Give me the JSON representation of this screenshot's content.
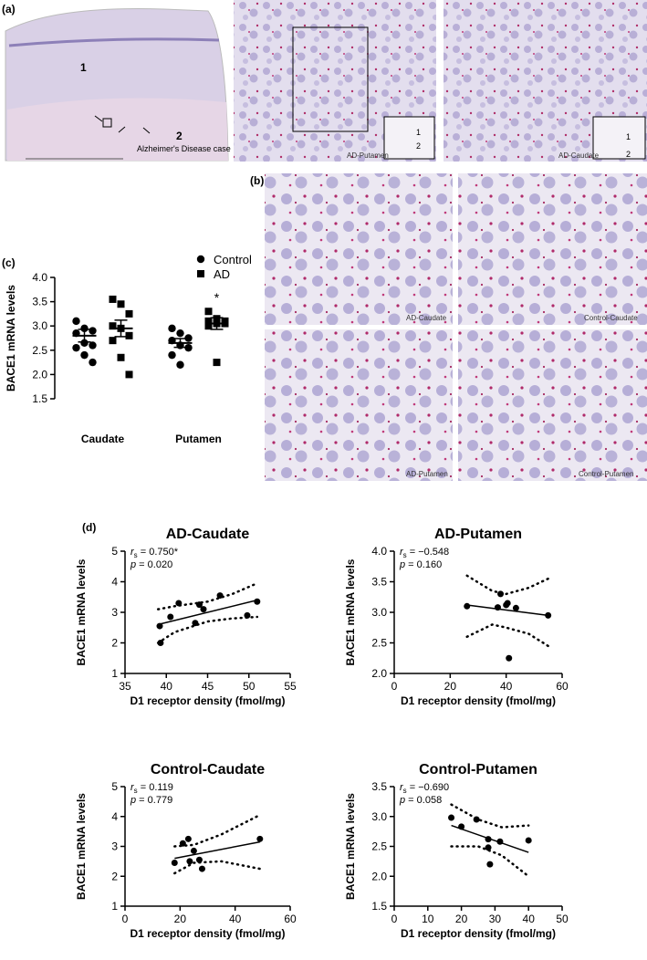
{
  "panel_labels": {
    "a": "(a)",
    "b": "(b)",
    "c": "(c)",
    "d": "(d)"
  },
  "images": {
    "a": [
      {
        "regions": [
          "1",
          "2"
        ],
        "caption": "Alzheimer's Disease case"
      },
      {
        "caption": "AD-Putamen",
        "inset": [
          "1",
          "2"
        ]
      },
      {
        "caption": "AD-Caudate",
        "inset": [
          "1",
          "2"
        ]
      }
    ],
    "b": [
      {
        "caption": "AD-Caudate"
      },
      {
        "caption": "Control-Caudate"
      },
      {
        "caption": "AD-Putamen"
      },
      {
        "caption": "Control-Putamen"
      }
    ]
  },
  "chart_data": [
    {
      "type": "dot",
      "y_label": "BACE1 mRNA levels",
      "categories": [
        "Caudate",
        "Putamen"
      ],
      "ylim": [
        1.5,
        4.0
      ],
      "yticks": [
        1.5,
        {
          "value": 2,
          "label": "2.0"
        },
        2.5,
        {
          "value": 3,
          "label": "3.0"
        },
        3.5,
        {
          "value": 4,
          "label": "4.0"
        }
      ],
      "series": [
        {
          "name": "Control",
          "marker": "circle",
          "color": "#000000",
          "values": [
            [
              3.1,
              2.95,
              2.9,
              2.85,
              2.65,
              2.6,
              2.55,
              2.4,
              2.25
            ],
            [
              2.95,
              2.85,
              2.75,
              2.7,
              2.6,
              2.55,
              2.4,
              2.2
            ]
          ],
          "means": [
            2.8,
            2.65
          ],
          "sems": [
            0.13,
            0.09
          ]
        },
        {
          "name": "AD",
          "marker": "square",
          "color": "#000000",
          "values": [
            [
              3.55,
              3.45,
              3.25,
              3.0,
              2.95,
              2.8,
              2.7,
              2.35,
              2.0
            ],
            [
              3.3,
              3.15,
              3.1,
              3.1,
              3.05,
              3.05,
              3.0,
              2.25
            ]
          ],
          "means": [
            2.95,
            3.05
          ],
          "sems": [
            0.17,
            0.12
          ]
        }
      ],
      "annotation": "*"
    },
    {
      "type": "scatter",
      "title": "AD-Caudate",
      "x_label": "D1  receptor density (fmol/mg)",
      "y_label": "BACE1 mRNA levels",
      "stats": [
        {
          "symbol": "r",
          "sub": "s",
          "text": " = 0.750*"
        },
        {
          "symbol": "p",
          "text": " = 0.020"
        }
      ],
      "xlim": [
        35,
        55
      ],
      "xticks": [
        35,
        40,
        45,
        50,
        55
      ],
      "ylim": [
        1,
        5
      ],
      "yticks": [
        1,
        2,
        3,
        4,
        5
      ],
      "x": [
        39.2,
        39.3,
        40.5,
        41.5,
        43.5,
        44,
        44.5,
        46.5,
        49.8,
        51
      ],
      "y": [
        2.55,
        2.0,
        2.85,
        3.3,
        2.65,
        3.25,
        3.1,
        3.55,
        2.9,
        3.35
      ],
      "fit": {
        "x": [
          39,
          51
        ],
        "y": [
          2.6,
          3.4
        ]
      },
      "ci_upper": {
        "x": [
          39,
          41,
          45,
          48,
          51
        ],
        "y": [
          3.1,
          3.2,
          3.35,
          3.6,
          3.95
        ]
      },
      "ci_lower": {
        "x": [
          39,
          41,
          45,
          48,
          51
        ],
        "y": [
          2.0,
          2.35,
          2.7,
          2.8,
          2.85
        ]
      }
    },
    {
      "type": "scatter",
      "title": "AD-Putamen",
      "x_label": "D1  receptor density (fmol/mg)",
      "y_label": "BACE1 mRNA levels",
      "stats": [
        {
          "symbol": "r",
          "sub": "s",
          "text": " = −0.548"
        },
        {
          "symbol": "p",
          "text": " = 0.160"
        }
      ],
      "xlim": [
        0,
        60
      ],
      "xticks": [
        0,
        20,
        40,
        60
      ],
      "ylim": [
        2,
        4
      ],
      "yticks": [
        {
          "value": 2,
          "label": "2.0"
        },
        2.5,
        {
          "value": 3,
          "label": "3.0"
        },
        3.5,
        {
          "value": 4,
          "label": "4.0"
        }
      ],
      "x": [
        26,
        37,
        38,
        40,
        40.5,
        41,
        43.5,
        55
      ],
      "y": [
        3.1,
        3.08,
        3.3,
        3.12,
        3.15,
        2.25,
        3.07,
        2.95
      ],
      "fit": {
        "x": [
          26,
          55
        ],
        "y": [
          3.12,
          2.95
        ]
      },
      "ci_upper": {
        "x": [
          26,
          35,
          40,
          48,
          55
        ],
        "y": [
          3.6,
          3.35,
          3.3,
          3.4,
          3.55
        ]
      },
      "ci_lower": {
        "x": [
          26,
          35,
          40,
          48,
          55
        ],
        "y": [
          2.6,
          2.8,
          2.75,
          2.65,
          2.45
        ]
      }
    },
    {
      "type": "scatter",
      "title": "Control-Caudate",
      "x_label": "D1  receptor density (fmol/mg)",
      "y_label": "BACE1 mRNA levels",
      "stats": [
        {
          "symbol": "r",
          "sub": "s",
          "text": " = 0.119"
        },
        {
          "symbol": "p",
          "text": " = 0.779"
        }
      ],
      "xlim": [
        0,
        60
      ],
      "xticks": [
        0,
        20,
        40,
        60
      ],
      "ylim": [
        1,
        5
      ],
      "yticks": [
        1,
        2,
        3,
        4,
        5
      ],
      "x": [
        18,
        21,
        23,
        23.5,
        25,
        27,
        28,
        49
      ],
      "y": [
        2.45,
        3.1,
        3.25,
        2.5,
        2.85,
        2.55,
        2.25,
        3.25
      ],
      "fit": {
        "x": [
          18,
          49
        ],
        "y": [
          2.6,
          3.15
        ]
      },
      "ci_upper": {
        "x": [
          18,
          25,
          35,
          49
        ],
        "y": [
          3.0,
          3.05,
          3.4,
          4.05
        ]
      },
      "ci_lower": {
        "x": [
          18,
          25,
          35,
          49
        ],
        "y": [
          2.1,
          2.45,
          2.5,
          2.25
        ]
      }
    },
    {
      "type": "scatter",
      "title": "Control-Putamen",
      "x_label": "D1  receptor density (fmol/mg)",
      "y_label": "BACE1 mRNA levels",
      "stats": [
        {
          "symbol": "r",
          "sub": "s",
          "text": " = −0.690"
        },
        {
          "symbol": "p",
          "text": " = 0.058"
        }
      ],
      "xlim": [
        0,
        50
      ],
      "xticks": [
        0,
        10,
        20,
        30,
        40,
        50
      ],
      "ylim": [
        1.5,
        3.5
      ],
      "yticks": [
        1.5,
        {
          "value": 2,
          "label": "2.0"
        },
        2.5,
        {
          "value": 3,
          "label": "3.0"
        },
        3.5
      ],
      "x": [
        17,
        20,
        24.5,
        28,
        28,
        28.5,
        31.5,
        40
      ],
      "y": [
        2.98,
        2.83,
        2.95,
        2.62,
        2.48,
        2.2,
        2.58,
        2.6
      ],
      "fit": {
        "x": [
          17,
          40
        ],
        "y": [
          2.85,
          2.4
        ]
      },
      "ci_upper": {
        "x": [
          17,
          25,
          32,
          40
        ],
        "y": [
          3.2,
          2.95,
          2.82,
          2.85
        ]
      },
      "ci_lower": {
        "x": [
          17,
          25,
          32,
          40
        ],
        "y": [
          2.5,
          2.5,
          2.35,
          2.0
        ]
      }
    }
  ]
}
